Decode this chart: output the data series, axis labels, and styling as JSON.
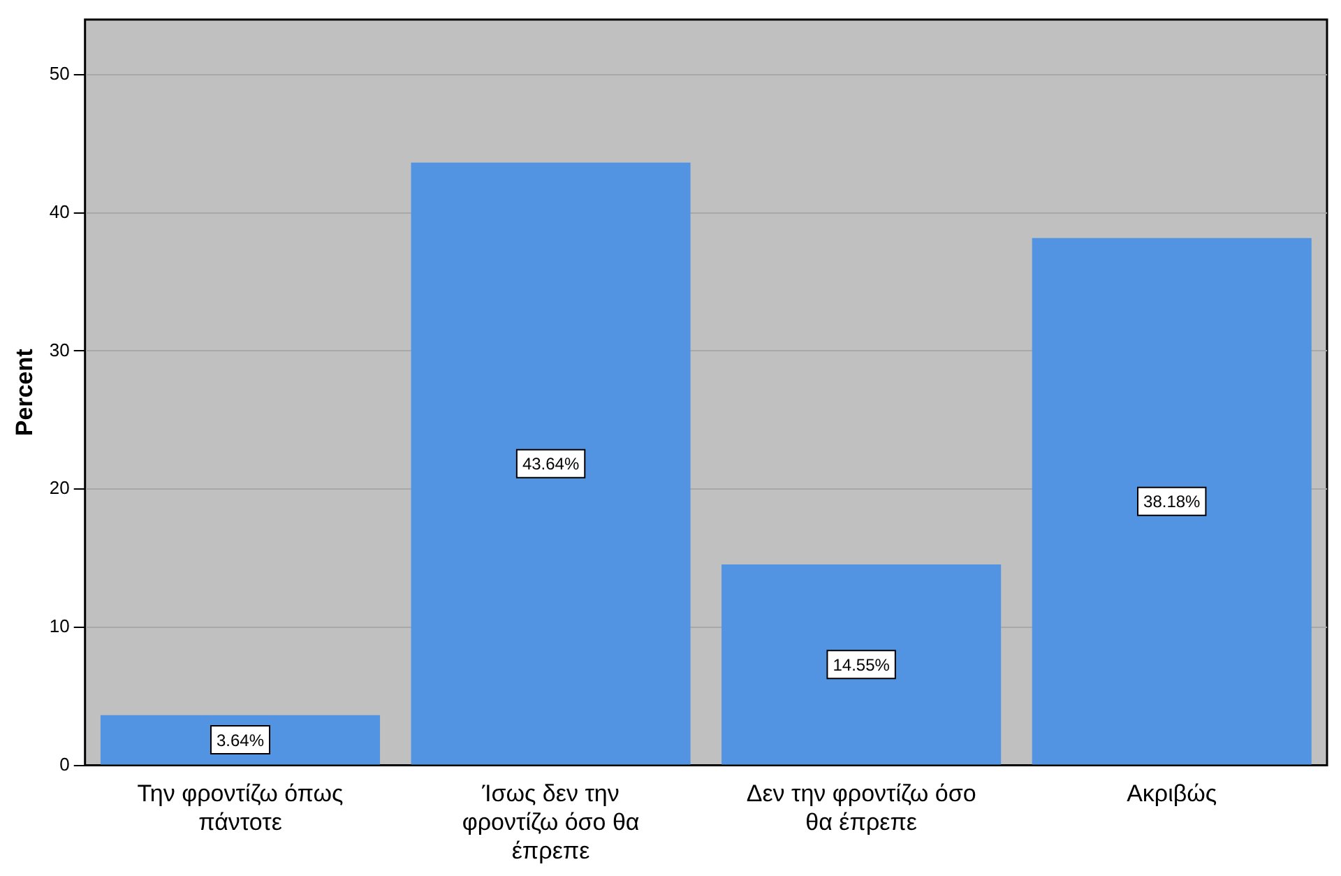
{
  "chart_data": {
    "type": "bar",
    "ylabel": "Percent",
    "categories": [
      "Την φροντίζω όπως πάντοτε",
      "Ίσως δεν την φροντίζω όσο θα έπρεπε",
      "Δεν την φροντίζω όσο θα έπρεπε",
      "Ακριβώς"
    ],
    "values": [
      3.64,
      43.64,
      14.55,
      38.18
    ],
    "value_labels": [
      "3.64%",
      "43.64%",
      "14.55%",
      "38.18%"
    ],
    "color": "#5294e2",
    "ylim": [
      0,
      54
    ],
    "yticks": [
      0,
      10,
      20,
      30,
      40,
      50
    ],
    "grid": "y",
    "legend": false
  }
}
